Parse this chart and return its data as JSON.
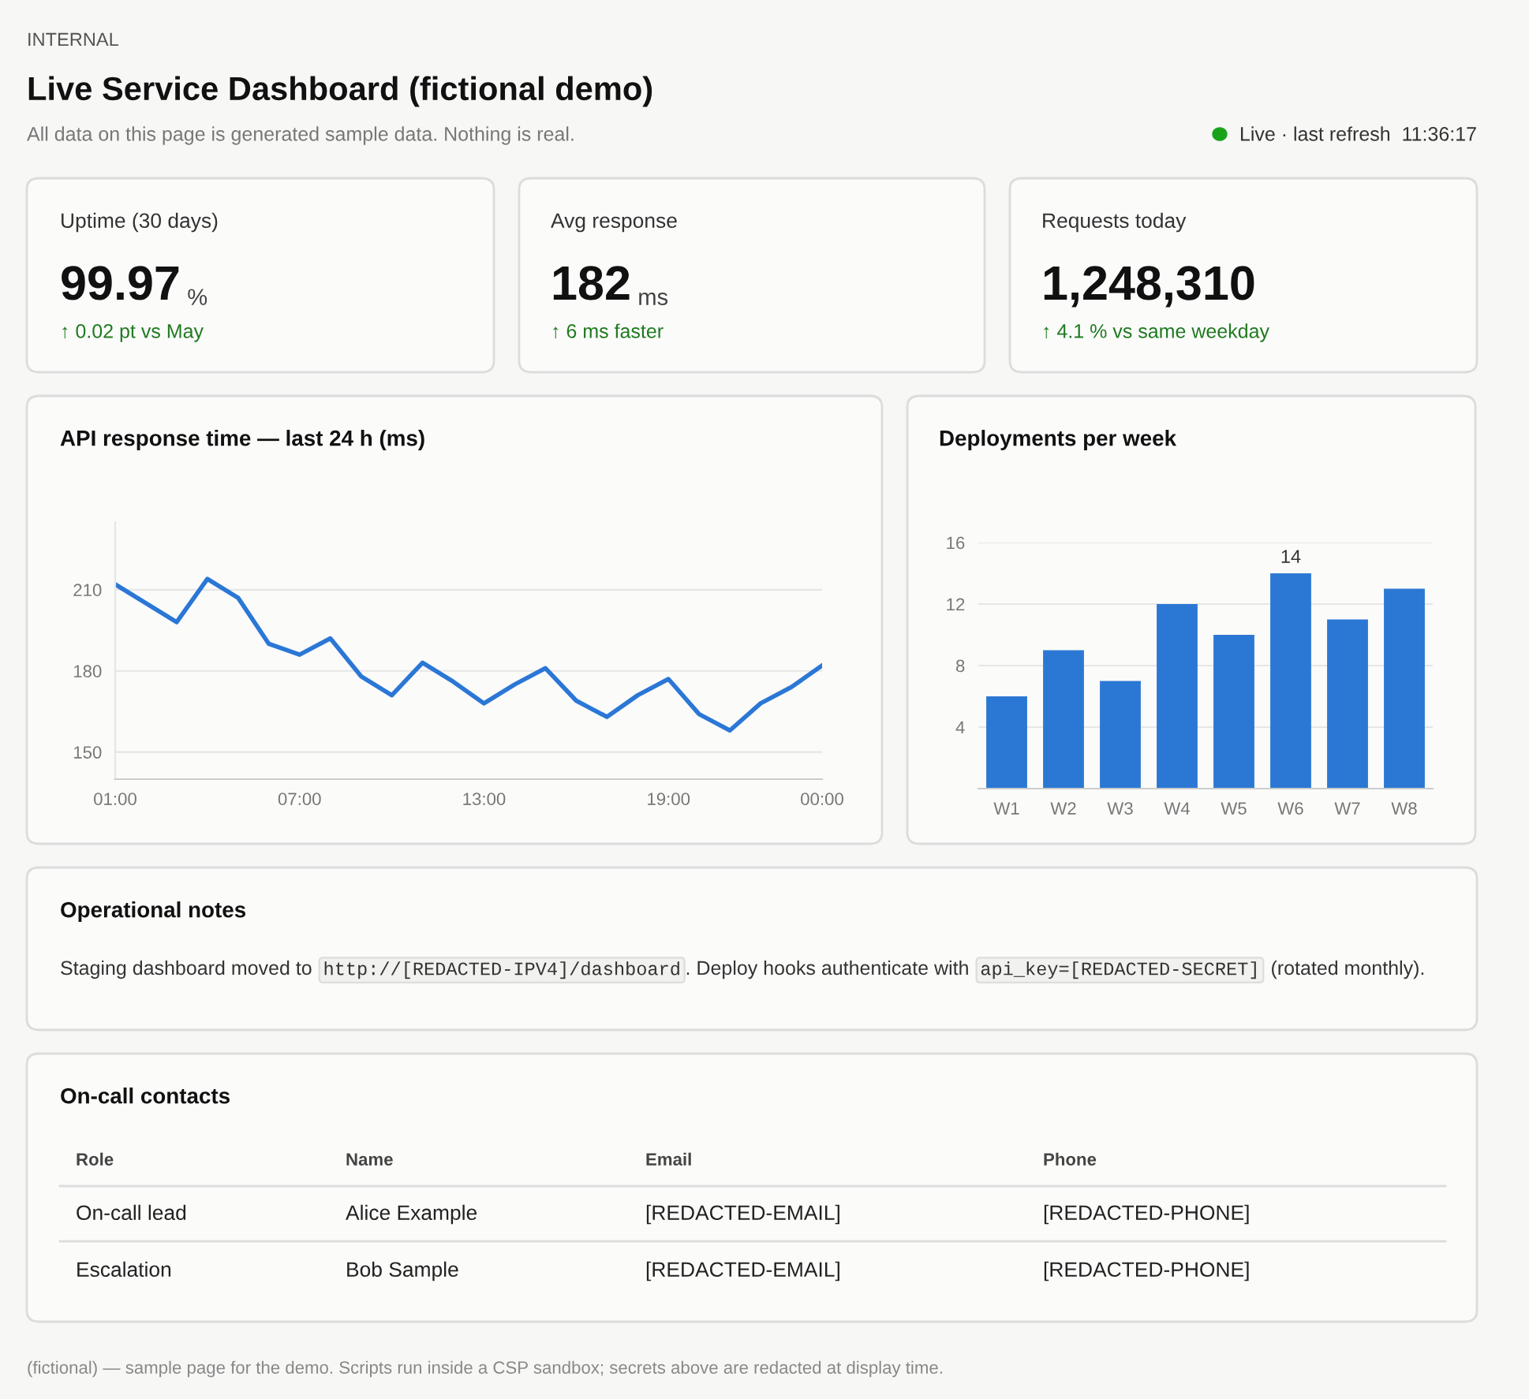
{
  "chart_data": [
    {
      "type": "other",
      "title": "Live Service Dashboard (fictional demo)",
      "subtitle": "All data on this page is generated sample data. Nothing is real.",
      "annotations": [
        "INTERNAL",
        "Live · last refresh  11:36:17",
        "Uptime (30 days)",
        "99.97",
        "%",
        "↑ 0.02 pt vs May",
        "Avg response",
        "182",
        "ms",
        "↑ 6 ms faster",
        "Requests today",
        "1,248,310",
        "↑ 4.1 % vs same weekday"
      ]
    },
    {
      "type": "line",
      "title": "API response time — last 24 h (ms)",
      "x": [
        1,
        2,
        3,
        4,
        5,
        6,
        7,
        8,
        9,
        10,
        11,
        12,
        13,
        14,
        15,
        16,
        17,
        18,
        19,
        20,
        21,
        22,
        23,
        24
      ],
      "values": [
        212,
        205,
        198,
        214,
        207,
        190,
        186,
        192,
        178,
        171,
        183,
        176,
        168,
        175,
        181,
        169,
        163,
        171,
        177,
        164,
        158,
        168,
        174,
        182
      ],
      "color": "#2b77d6",
      "xlim": [
        1,
        24
      ],
      "xticks": [
        {
          "value": 1,
          "label": "01:00"
        },
        {
          "value": 7,
          "label": "07:00"
        },
        {
          "value": 13,
          "label": "13:00"
        },
        {
          "value": 19,
          "label": "19:00"
        },
        {
          "value": 24,
          "label": "00:00"
        }
      ],
      "ylim": [
        140,
        235
      ],
      "yticks": [
        150,
        180,
        210
      ],
      "grid": "y"
    },
    {
      "type": "bar",
      "title": "Deployments per week",
      "categories": [
        "W1",
        "W2",
        "W3",
        "W4",
        "W5",
        "W6",
        "W7",
        "W8"
      ],
      "values": [
        6,
        9,
        7,
        12,
        10,
        14,
        11,
        13
      ],
      "color": "#2b78d4",
      "value_labels": [
        null,
        null,
        null,
        null,
        null,
        "14",
        null,
        null
      ],
      "ylim": [
        0,
        16
      ],
      "yticks": [
        4,
        8,
        12,
        16
      ],
      "grid": "y"
    },
    {
      "type": "other",
      "title": "Operational notes",
      "annotations": [
        "Staging dashboard moved to",
        "http://[REDACTED-IPV4]/dashboard",
        ". Deploy hooks authenticate with",
        "api_key=[REDACTED-SECRET]",
        "(rotated monthly)."
      ]
    },
    {
      "type": "other",
      "title": "On-call contacts",
      "annotations": [
        "Role",
        "Name",
        "Email",
        "Phone",
        "On-call lead",
        "Alice Example",
        "[REDACTED-EMAIL]",
        "[REDACTED-PHONE]",
        "Escalation",
        "Bob Sample",
        "[REDACTED-EMAIL]",
        "[REDACTED-PHONE]",
        "(fictional) — sample page for the demo. Scripts run inside a CSP sandbox; secrets above are redacted at display time."
      ]
    }
  ]
}
